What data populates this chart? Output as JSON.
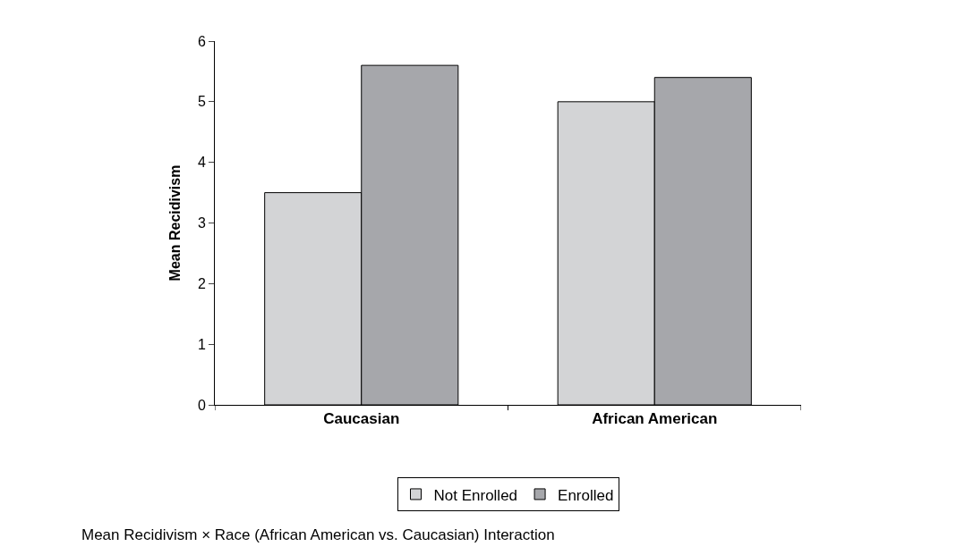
{
  "chart_data": {
    "type": "bar",
    "ylabel": "Mean Recidivism",
    "categories": [
      "Caucasian",
      "African American"
    ],
    "series": [
      {
        "name": "Not Enrolled",
        "color": "#d3d4d6",
        "values": [
          3.5,
          5.0
        ]
      },
      {
        "name": "Enrolled",
        "color": "#a6a7ab",
        "values": [
          5.6,
          5.4
        ]
      }
    ],
    "ylim": [
      0,
      6
    ],
    "yticks": [
      0,
      1,
      2,
      3,
      4,
      5,
      6
    ],
    "grid": false,
    "legend": "bottom",
    "annotations": [
      "Mean Recidivism × Race (African American vs. Caucasian) Interaction"
    ]
  }
}
